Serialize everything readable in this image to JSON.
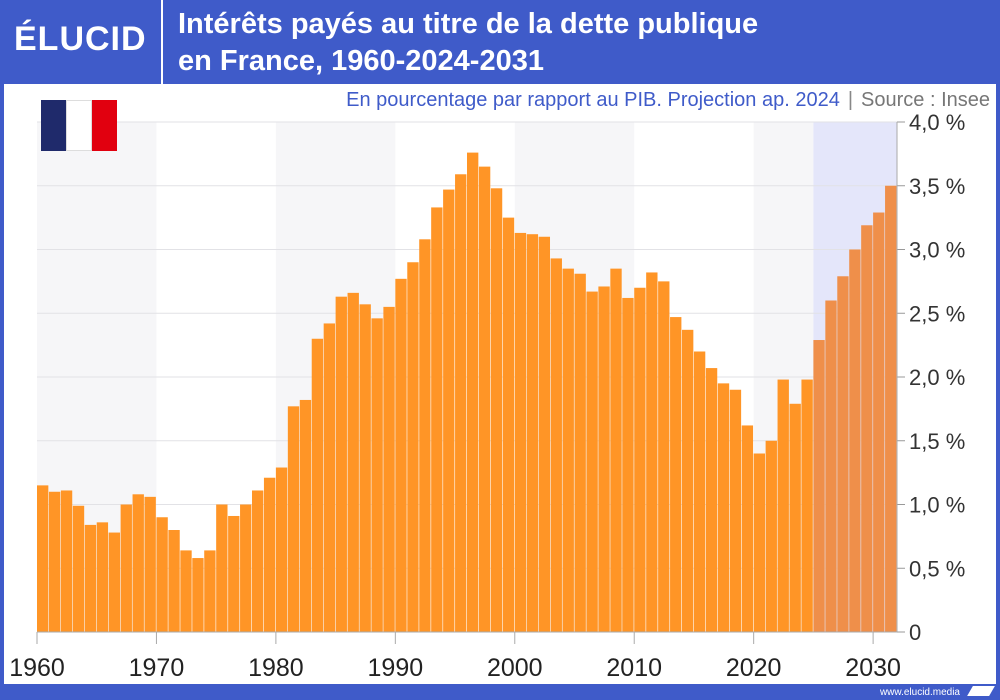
{
  "header": {
    "logo": "ÉLUCID",
    "title_line1": "Intérêts payés au titre de la dette publique",
    "title_line2": "en France, 1960-2024-2031"
  },
  "subtitle": {
    "text": "En pourcentage par rapport au PIB. Projection ap. 2024",
    "separator": "|",
    "source": "Source : Insee"
  },
  "footer": {
    "url": "www.elucid.media"
  },
  "flag": {
    "colors": [
      "#1f2a6b",
      "#ffffff",
      "#e1000f"
    ]
  },
  "colors": {
    "brand": "#3f5bc9",
    "bar": "#ff9526",
    "projection_bar": "#ef8f4a",
    "projection_band": "#e4e6fa",
    "band": "#f6f6f8"
  },
  "chart_data": {
    "type": "bar",
    "title": "Intérêts payés au titre de la dette publique en France, 1960-2024-2031",
    "ylabel": "En pourcentage par rapport au PIB",
    "ylim": [
      0,
      4.0
    ],
    "y_ticks": [
      0,
      0.5,
      1.0,
      1.5,
      2.0,
      2.5,
      3.0,
      3.5,
      4.0
    ],
    "y_tick_labels": [
      "0",
      "0,5 %",
      "1,0 %",
      "1,5 %",
      "2,0 %",
      "2,5 %",
      "3,0 %",
      "3,5 %",
      "4,0 %"
    ],
    "x_tick_labels": [
      "1960",
      "1970",
      "1980",
      "1990",
      "2000",
      "2010",
      "2020",
      "2030"
    ],
    "grid": true,
    "projection_from": 2025,
    "years": [
      1960,
      1961,
      1962,
      1963,
      1964,
      1965,
      1966,
      1967,
      1968,
      1969,
      1970,
      1971,
      1972,
      1973,
      1974,
      1975,
      1976,
      1977,
      1978,
      1979,
      1980,
      1981,
      1982,
      1983,
      1984,
      1985,
      1986,
      1987,
      1988,
      1989,
      1990,
      1991,
      1992,
      1993,
      1994,
      1995,
      1996,
      1997,
      1998,
      1999,
      2000,
      2001,
      2002,
      2003,
      2004,
      2005,
      2006,
      2007,
      2008,
      2009,
      2010,
      2011,
      2012,
      2013,
      2014,
      2015,
      2016,
      2017,
      2018,
      2019,
      2020,
      2021,
      2022,
      2023,
      2024,
      2025,
      2026,
      2027,
      2028,
      2029,
      2030,
      2031
    ],
    "values": [
      1.15,
      1.1,
      1.11,
      0.99,
      0.84,
      0.86,
      0.78,
      1.0,
      1.08,
      1.06,
      0.9,
      0.8,
      0.64,
      0.58,
      0.64,
      1.0,
      0.91,
      1.0,
      1.11,
      1.21,
      1.29,
      1.77,
      1.82,
      2.3,
      2.42,
      2.63,
      2.66,
      2.57,
      2.46,
      2.55,
      2.77,
      2.9,
      3.08,
      3.33,
      3.47,
      3.59,
      3.76,
      3.65,
      3.48,
      3.25,
      3.13,
      3.12,
      3.1,
      2.93,
      2.85,
      2.81,
      2.67,
      2.71,
      2.85,
      2.62,
      2.7,
      2.82,
      2.75,
      2.47,
      2.37,
      2.2,
      2.07,
      1.95,
      1.9,
      1.62,
      1.4,
      1.5,
      1.98,
      1.79,
      1.98,
      2.29,
      2.6,
      2.79,
      3.0,
      3.19,
      3.29,
      3.5
    ]
  }
}
